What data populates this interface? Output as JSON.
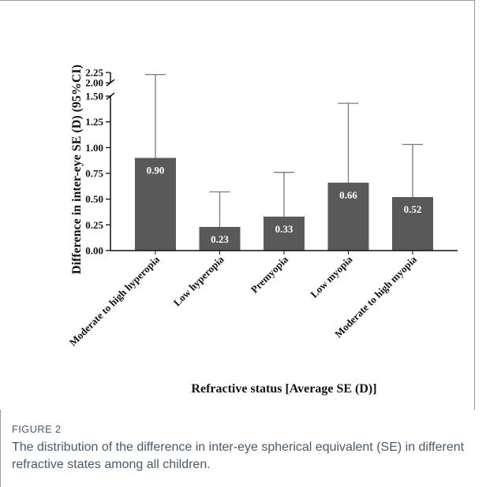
{
  "caption": {
    "label": "FIGURE 2",
    "text": "The distribution of the difference in inter-eye spherical equivalent (SE) in different refractive states among all children."
  },
  "chart_data": {
    "type": "bar",
    "xlabel": "Refractive status [Average SE (D)]",
    "ylabel": "Difference in inter-eye SE (D) (95%CI)",
    "categories": [
      "Moderate to high hyperopia",
      "Low hyperopia",
      "Premyopia",
      "Low myopia",
      "Moderate to high myopia"
    ],
    "values": [
      0.9,
      0.23,
      0.33,
      0.66,
      0.52
    ],
    "value_labels": [
      "0.90",
      "0.23",
      "0.33",
      "0.66",
      "0.52"
    ],
    "error_upper": [
      2.2,
      0.57,
      0.76,
      1.43,
      1.03
    ],
    "y_ticks": [
      "0.00",
      "0.25",
      "0.50",
      "0.75",
      "1.00",
      "1.25",
      "1.50",
      "2.00",
      "2.25"
    ],
    "ylim": [
      0,
      2.25
    ],
    "y_axis_break": [
      1.5,
      2.0
    ],
    "bar_color": "#595959",
    "error_bar_color": "#7a7a7a",
    "grid": false,
    "legend": "none"
  }
}
